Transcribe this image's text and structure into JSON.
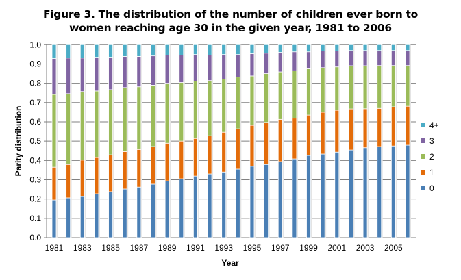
{
  "chart_data": {
    "type": "bar",
    "stacked": true,
    "title_lines": [
      "Figure 3. The distribution of the number of children ever born to",
      "women reaching age 30 in the given year, 1981 to 2006"
    ],
    "xlabel": "Year",
    "ylabel": "Parity distribution",
    "ylim": [
      0,
      1.0
    ],
    "yticks": [
      "0.0",
      "0.1",
      "0.2",
      "0.3",
      "0.4",
      "0.5",
      "0.6",
      "0.7",
      "0.8",
      "0.9",
      "1.0"
    ],
    "xtick_labels": [
      "1981",
      "1983",
      "1985",
      "1987",
      "1989",
      "1991",
      "1993",
      "1995",
      "1997",
      "1999",
      "2001",
      "2003",
      "2005"
    ],
    "grid": "horizontal",
    "legend_position": "right",
    "categories": [
      1981,
      1982,
      1983,
      1984,
      1985,
      1986,
      1987,
      1988,
      1989,
      1990,
      1991,
      1992,
      1993,
      1994,
      1995,
      1996,
      1997,
      1998,
      1999,
      2000,
      2001,
      2002,
      2003,
      2004,
      2005,
      2006
    ],
    "series": [
      {
        "name": "0",
        "color": "#4a7fb5",
        "values": [
          0.195,
          0.206,
          0.213,
          0.227,
          0.238,
          0.252,
          0.262,
          0.277,
          0.294,
          0.305,
          0.319,
          0.33,
          0.34,
          0.355,
          0.37,
          0.379,
          0.394,
          0.408,
          0.426,
          0.433,
          0.443,
          0.454,
          0.466,
          0.472,
          0.475,
          0.479
        ]
      },
      {
        "name": "1",
        "color": "#e36c0a",
        "values": [
          0.17,
          0.173,
          0.189,
          0.188,
          0.191,
          0.194,
          0.195,
          0.195,
          0.195,
          0.195,
          0.195,
          0.198,
          0.206,
          0.209,
          0.212,
          0.218,
          0.219,
          0.211,
          0.209,
          0.217,
          0.217,
          0.213,
          0.202,
          0.198,
          0.203,
          0.202
        ]
      },
      {
        "name": "2",
        "color": "#9bbb59",
        "values": [
          0.377,
          0.367,
          0.355,
          0.345,
          0.338,
          0.332,
          0.325,
          0.318,
          0.311,
          0.304,
          0.297,
          0.286,
          0.276,
          0.268,
          0.256,
          0.253,
          0.246,
          0.246,
          0.24,
          0.231,
          0.225,
          0.224,
          0.223,
          0.222,
          0.214,
          0.211
        ]
      },
      {
        "name": "3",
        "color": "#8064a2",
        "values": [
          0.186,
          0.185,
          0.174,
          0.175,
          0.168,
          0.161,
          0.157,
          0.152,
          0.146,
          0.142,
          0.138,
          0.132,
          0.127,
          0.117,
          0.115,
          0.106,
          0.101,
          0.098,
          0.088,
          0.086,
          0.082,
          0.079,
          0.079,
          0.078,
          0.078,
          0.078
        ]
      },
      {
        "name": "4+",
        "color": "#4bacc6",
        "values": [
          0.072,
          0.069,
          0.069,
          0.065,
          0.065,
          0.061,
          0.061,
          0.058,
          0.054,
          0.054,
          0.051,
          0.054,
          0.051,
          0.051,
          0.047,
          0.044,
          0.04,
          0.037,
          0.037,
          0.033,
          0.033,
          0.03,
          0.03,
          0.03,
          0.03,
          0.03
        ]
      }
    ]
  }
}
